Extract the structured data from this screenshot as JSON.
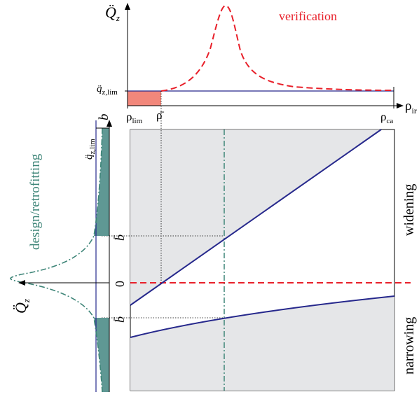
{
  "top_plot": {
    "y_axis_label": "Q̈",
    "y_axis_sub": "z",
    "x_axis_label": "ρ",
    "x_axis_sub": "ir",
    "threshold_label": "q̈",
    "threshold_sub": "z,lim",
    "tick_rho_lim": "ρ",
    "tick_rho_lim_sub": "lim",
    "tick_rho_bar": "ρ̄",
    "tick_rho_ca": "ρ",
    "tick_rho_ca_sub": "ca",
    "curve_label": "verification"
  },
  "left_plot": {
    "title": "design/retrofitting",
    "y_axis_label": "b",
    "x_axis_label": "Q̈",
    "x_axis_sub": "z",
    "threshold_label": "q̈",
    "threshold_sub": "z,lim",
    "tick_b_upper": "b̄",
    "tick_zero": "0",
    "tick_b_lower": "b̄"
  },
  "main_plot": {
    "label_upper": "widening",
    "label_lower": "narrowing"
  },
  "colors": {
    "red": "#e8202a",
    "blue": "#26288c",
    "teal": "#3e8578",
    "shade": "#e5e6e8",
    "teal_fill": "#5f9894",
    "salmon": "#f2877b"
  }
}
